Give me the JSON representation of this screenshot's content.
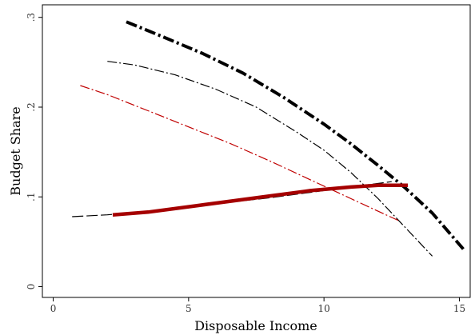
{
  "chart_data": {
    "type": "line",
    "xlabel": "Disposable Income",
    "ylabel": "Budget Share",
    "xlim": [
      -0.4,
      15.4
    ],
    "ylim": [
      -0.012,
      0.314
    ],
    "xticks": [
      0,
      5,
      10,
      15
    ],
    "xtick_labels": [
      "0",
      "5",
      "10",
      "15"
    ],
    "yticks": [
      0,
      0.1,
      0.2,
      0.3
    ],
    "ytick_labels": [
      "0",
      ".1",
      ".2",
      ".3"
    ],
    "grid": false,
    "legend": "none",
    "series": [
      {
        "color": "#000000",
        "style": "thick-dash-dot",
        "x": [
          2.7,
          4.0,
          5.5,
          7.0,
          8.5,
          10.0,
          11.0,
          12.0,
          13.0,
          14.0,
          15.2
        ],
        "y": [
          0.295,
          0.279,
          0.26,
          0.238,
          0.211,
          0.181,
          0.159,
          0.135,
          0.11,
          0.082,
          0.04
        ]
      },
      {
        "color": "#000000",
        "style": "thin-dash-dot",
        "x": [
          2.0,
          3.0,
          4.5,
          6.0,
          7.5,
          9.0,
          10.0,
          11.0,
          12.0,
          13.0,
          14.0
        ],
        "y": [
          0.251,
          0.247,
          0.236,
          0.22,
          0.2,
          0.172,
          0.152,
          0.127,
          0.098,
          0.066,
          0.034
        ]
      },
      {
        "color": "#c00000",
        "style": "thin-dash-dot",
        "x": [
          1.0,
          2.0,
          3.5,
          5.0,
          6.5,
          8.0,
          9.5,
          11.0,
          12.0,
          12.8
        ],
        "y": [
          0.224,
          0.214,
          0.196,
          0.178,
          0.16,
          0.14,
          0.119,
          0.098,
          0.084,
          0.073
        ]
      },
      {
        "color": "#000000",
        "style": "long-dash",
        "x": [
          0.7,
          2.0,
          3.5,
          5.0,
          6.5,
          8.0,
          9.5,
          11.0,
          12.5
        ],
        "y": [
          0.078,
          0.08,
          0.084,
          0.089,
          0.094,
          0.099,
          0.105,
          0.111,
          0.117
        ]
      },
      {
        "color": "#a50000",
        "style": "thick-solid",
        "x": [
          2.2,
          3.5,
          5.0,
          6.5,
          8.0,
          9.5,
          11.0,
          12.0,
          13.1
        ],
        "y": [
          0.08,
          0.083,
          0.089,
          0.095,
          0.101,
          0.107,
          0.111,
          0.113,
          0.113
        ]
      }
    ]
  }
}
